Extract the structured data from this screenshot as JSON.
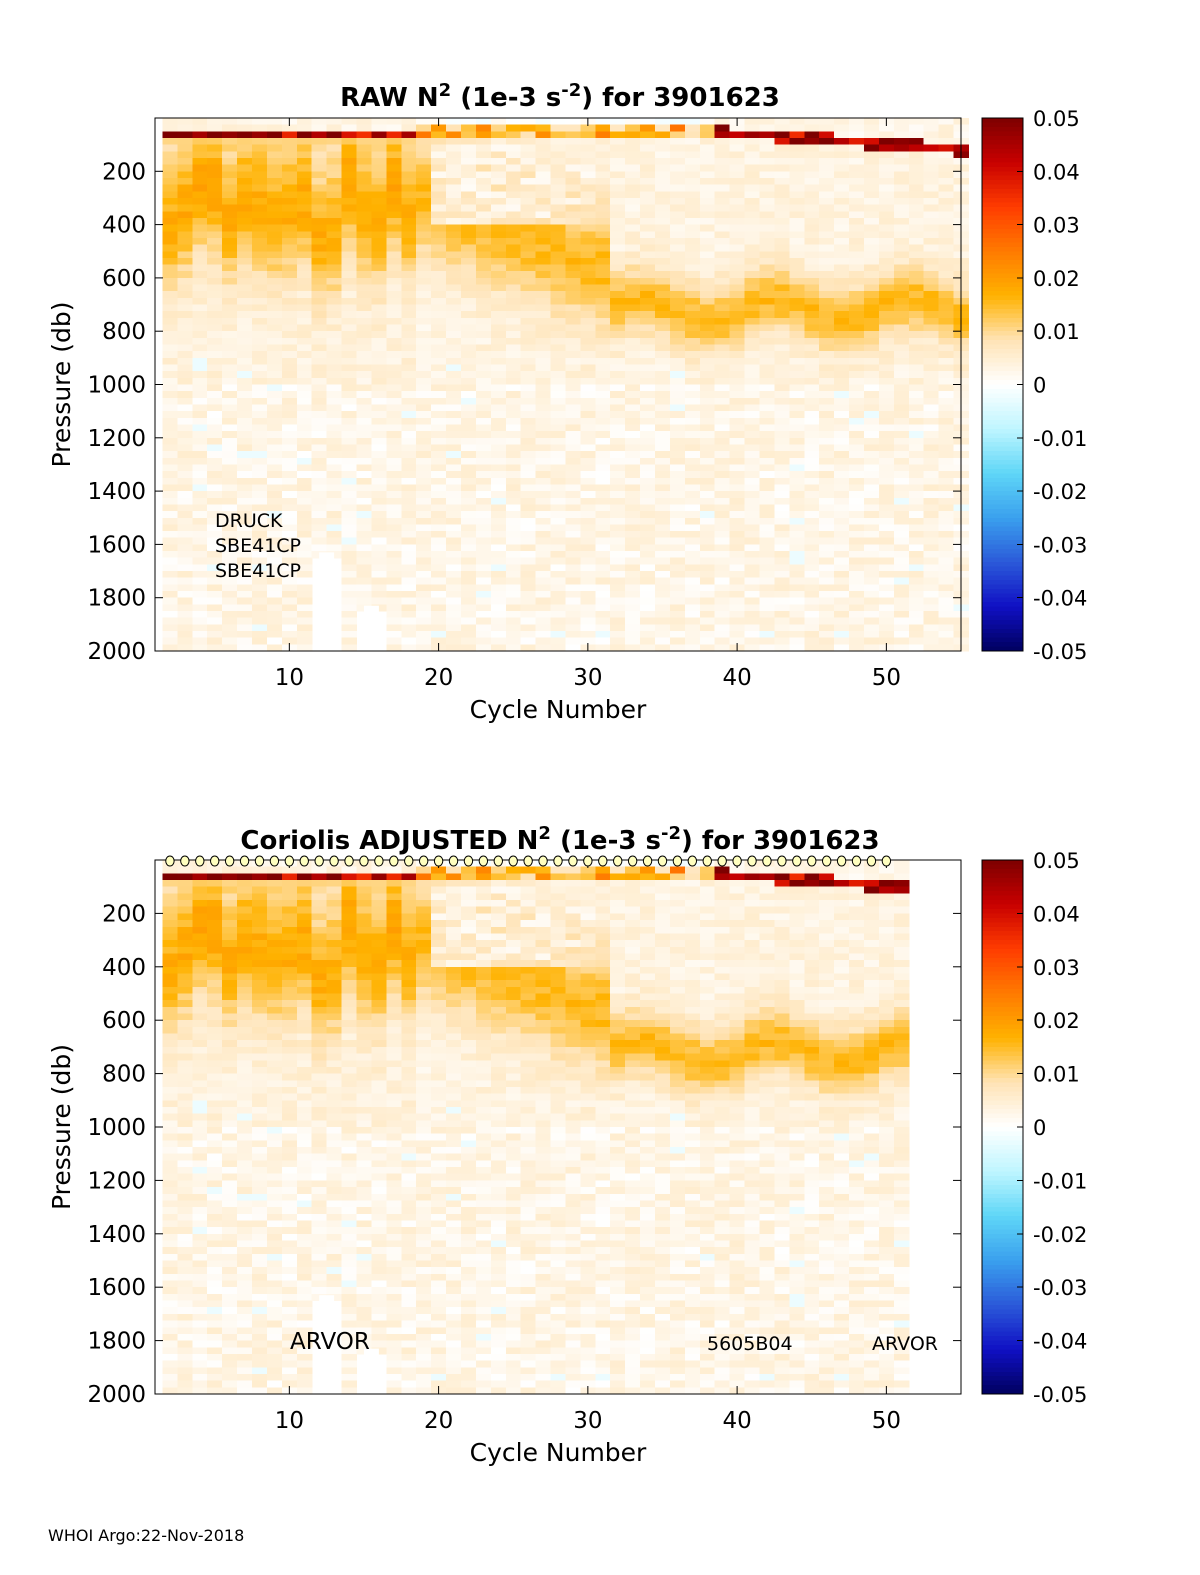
{
  "footer": {
    "text": "WHOI Argo:22-Nov-2018"
  },
  "chart_data": [
    {
      "type": "heatmap",
      "title": {
        "main": "RAW N",
        "sup1": "2",
        "mid": " (1e-3 s",
        "sup2": "-2",
        "end": ") for 3901623"
      },
      "xlabel": "Cycle Number",
      "ylabel": "Pressure (db)",
      "xlim": [
        1,
        55
      ],
      "ylim": [
        0,
        2000
      ],
      "y_reversed": true,
      "xticks": [
        10,
        20,
        30,
        40,
        50
      ],
      "yticks": [
        200,
        400,
        600,
        800,
        1000,
        1200,
        1400,
        1600,
        1800,
        2000
      ],
      "colorbar": {
        "range": [
          -0.05,
          0.05
        ],
        "ticks": [
          "0.05",
          "0.04",
          "0.03",
          "0.02",
          "0.01",
          "0",
          "-0.01",
          "-0.02",
          "-0.03",
          "-0.04",
          "-0.05"
        ],
        "colors": [
          "#7d0000",
          "#c80000",
          "#ff3c00",
          "#ff7a00",
          "#ffb200",
          "#ffe3b5",
          "#ffffff",
          "#bff6ff",
          "#5fd6f7",
          "#3aa0ee",
          "#2b5ad9",
          "#1010c4",
          "#00005f"
        ]
      },
      "cycles_with_data": [
        2,
        55
      ],
      "gaps": [
        {
          "cycle": 12.5,
          "from": 1630,
          "to": 2000
        },
        {
          "cycle": 15.5,
          "from": 1830,
          "to": 2000
        }
      ],
      "annotations": [
        "DRUCK",
        "SBE41CP",
        "SBE41CP"
      ],
      "qc_markers": null
    },
    {
      "type": "heatmap",
      "title": {
        "main": "Coriolis  ADJUSTED N",
        "sup1": "2",
        "mid": " (1e-3 s",
        "sup2": "-2",
        "end": ") for 3901623"
      },
      "xlabel": "Cycle Number",
      "ylabel": "Pressure (db)",
      "xlim": [
        1,
        55
      ],
      "ylim": [
        0,
        2000
      ],
      "y_reversed": true,
      "xticks": [
        10,
        20,
        30,
        40,
        50
      ],
      "yticks": [
        200,
        400,
        600,
        800,
        1000,
        1200,
        1400,
        1600,
        1800,
        2000
      ],
      "colorbar": {
        "range": [
          -0.05,
          0.05
        ],
        "ticks": [
          "0.05",
          "0.04",
          "0.03",
          "0.02",
          "0.01",
          "0",
          "-0.01",
          "-0.02",
          "-0.03",
          "-0.04",
          "-0.05"
        ],
        "colors": [
          "#7d0000",
          "#c80000",
          "#ff3c00",
          "#ff7a00",
          "#ffb200",
          "#ffe3b5",
          "#ffffff",
          "#bff6ff",
          "#5fd6f7",
          "#3aa0ee",
          "#2b5ad9",
          "#1010c4",
          "#00005f"
        ]
      },
      "cycles_with_data": [
        2,
        51
      ],
      "gaps": [
        {
          "cycle": 12.5,
          "from": 1630,
          "to": 2000
        },
        {
          "cycle": 15.5,
          "from": 1830,
          "to": 2000
        }
      ],
      "annotations": [
        "ARVOR",
        "5605B04",
        "ARVOR"
      ],
      "qc_markers": {
        "symbol": "o",
        "pressure": 0,
        "from": 2,
        "to": 50
      }
    }
  ]
}
